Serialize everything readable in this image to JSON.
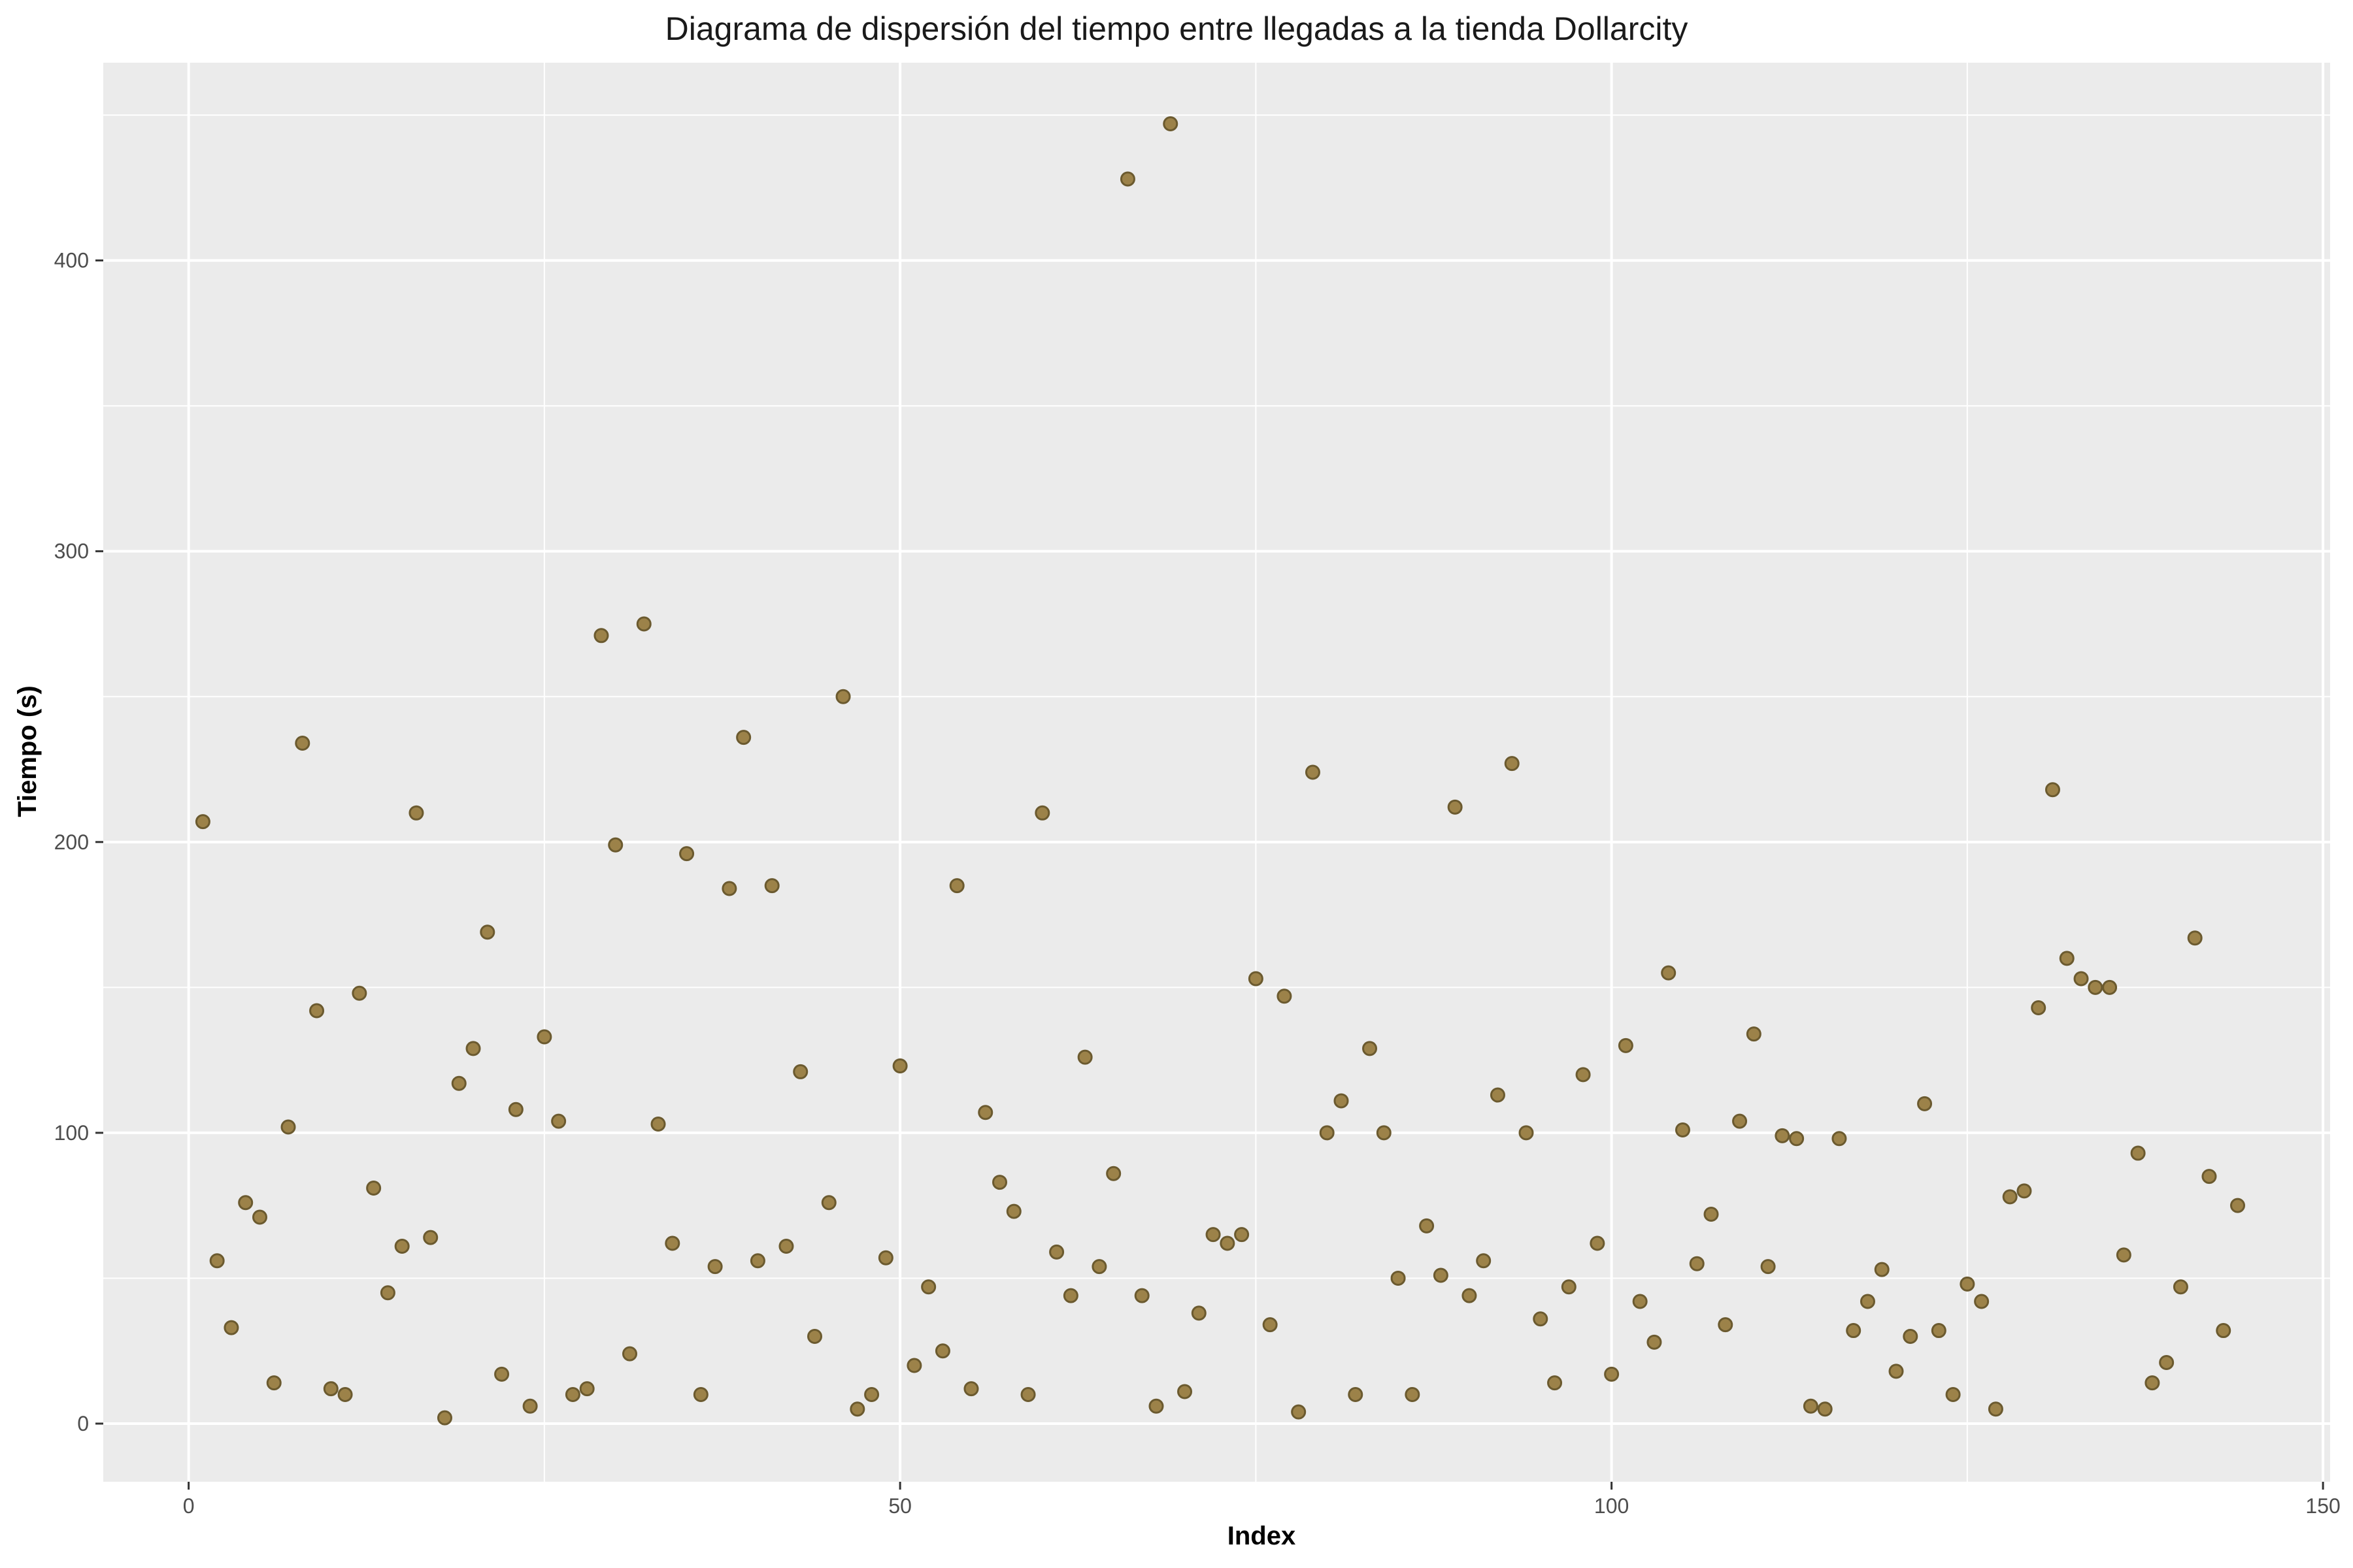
{
  "chart_data": {
    "type": "scatter",
    "title": "Diagrama de dispersión del tiempo entre llegadas a la tienda Dollarcity",
    "xlabel": "Index",
    "ylabel": "Tiempo (s)",
    "xlim": [
      -6,
      150.5
    ],
    "ylim": [
      -20,
      468
    ],
    "x_ticks": [
      0,
      50,
      100,
      150
    ],
    "x_tick_labels": [
      "0",
      "50",
      "100",
      "150"
    ],
    "y_ticks": [
      0,
      100,
      200,
      300,
      400
    ],
    "y_tick_labels": [
      "0",
      "100",
      "200",
      "300",
      "400"
    ],
    "grid": true,
    "colors": {
      "panel": "#EBEBEB",
      "grid": "#FFFFFF",
      "point_fill": "#9C8249",
      "point_stroke": "#6B5A2F"
    },
    "series": [
      {
        "x": [
          1,
          2,
          3,
          4,
          5,
          6,
          7,
          8,
          9,
          10,
          11,
          12,
          13,
          14,
          15,
          16,
          17,
          18,
          19,
          20,
          21,
          22,
          23,
          24,
          25,
          26,
          27,
          28,
          29,
          30,
          31,
          32,
          33,
          34,
          35,
          36,
          37,
          38,
          39,
          40,
          41,
          42,
          43,
          44,
          45,
          46,
          47,
          48,
          49,
          50,
          51,
          52,
          53,
          54,
          55,
          56,
          57,
          58,
          59,
          60,
          61,
          62,
          63,
          64,
          65,
          66,
          67,
          68,
          69,
          70,
          71,
          72,
          73,
          74,
          75,
          76,
          77,
          78,
          79,
          80,
          81,
          82,
          83,
          84,
          85,
          86,
          87,
          88,
          89,
          90,
          91,
          92,
          93,
          94,
          95,
          96,
          97,
          98,
          99,
          100,
          101,
          102,
          103,
          104,
          105,
          106,
          107,
          108,
          109,
          110,
          111,
          112,
          113,
          114,
          115,
          116,
          117,
          118,
          119,
          120,
          121,
          122,
          123,
          124,
          125,
          126,
          127,
          128,
          129,
          130,
          131,
          132,
          133,
          134,
          135,
          136,
          137,
          138,
          139,
          140,
          141,
          142,
          143,
          144
        ],
        "y": [
          207,
          56,
          33,
          76,
          71,
          14,
          102,
          234,
          142,
          12,
          10,
          148,
          81,
          45,
          61,
          210,
          64,
          2,
          117,
          129,
          169,
          17,
          108,
          6,
          133,
          104,
          10,
          12,
          271,
          199,
          24,
          275,
          103,
          62,
          196,
          10,
          54,
          184,
          236,
          56,
          185,
          61,
          121,
          30,
          76,
          250,
          5,
          10,
          57,
          123,
          20,
          47,
          25,
          185,
          12,
          107,
          83,
          73,
          10,
          210,
          59,
          44,
          126,
          54,
          86,
          428,
          44,
          6,
          447,
          11,
          38,
          65,
          62,
          65,
          153,
          34,
          147,
          4,
          224,
          100,
          111,
          10,
          129,
          100,
          50,
          10,
          68,
          51,
          212,
          44,
          56,
          113,
          227,
          100,
          36,
          14,
          47,
          120,
          62,
          17,
          130,
          42,
          28,
          155,
          101,
          55,
          72,
          34,
          104,
          134,
          54,
          99,
          98,
          6,
          5,
          98,
          32,
          42,
          53,
          18,
          30,
          110,
          32,
          10,
          48,
          42,
          5,
          78,
          80,
          143,
          218,
          160,
          153,
          150,
          150,
          58,
          93,
          14,
          21,
          47,
          167,
          85,
          32,
          75
        ]
      }
    ]
  }
}
